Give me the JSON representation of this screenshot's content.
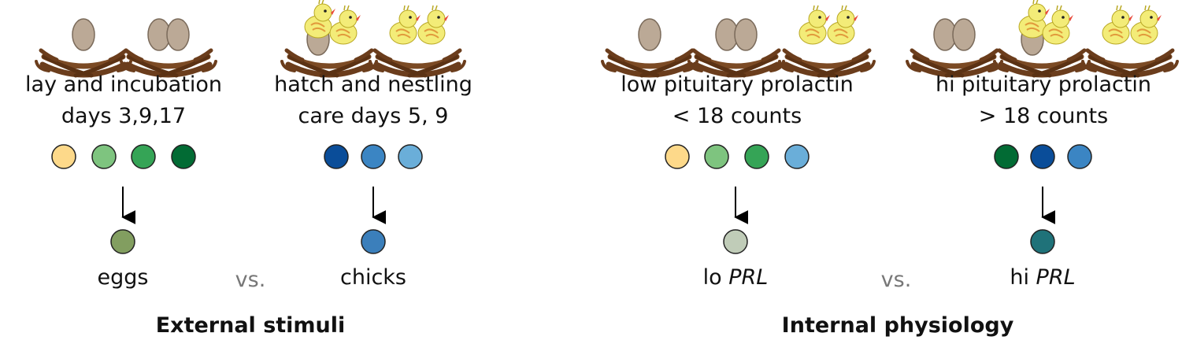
{
  "colors": {
    "lay": "#fdd98a",
    "inc3": "#7ec47f",
    "inc9": "#35a456",
    "inc17": "#026b34",
    "hatch": "#0a4d99",
    "n5": "#3b85c3",
    "n9": "#6aaed9",
    "eggs": "#829e60",
    "chicks": "#3b7fbb",
    "lo_prl": "#c0ccb8",
    "hi_prl": "#1f7279"
  },
  "external": {
    "group1_label_l1": "lay and incubation",
    "group1_label_l2": "days 3,9,17",
    "group2_label_l1": "hatch and nestling",
    "group2_label_l2": "care days 5, 9",
    "result1": "eggs",
    "result2": "chicks",
    "vs": "vs.",
    "section_title": "External stimuli"
  },
  "internal": {
    "group1_label_l1": "low pituitary prolactin",
    "group1_label_l2": "< 18 counts",
    "group2_label_l1": "hi pituitary prolactin",
    "group2_label_l2": "> 18 counts",
    "result1_prefix": "lo ",
    "result1_gene": "PRL",
    "result2_prefix": "hi ",
    "result2_gene": "PRL",
    "vs": "vs.",
    "section_title": "Internal physiology"
  },
  "icons": {
    "nests": [
      "egg-nest-icon",
      "two-egg-nest-icon",
      "chick-egg-nest-icon",
      "two-chick-nest-icon"
    ]
  }
}
